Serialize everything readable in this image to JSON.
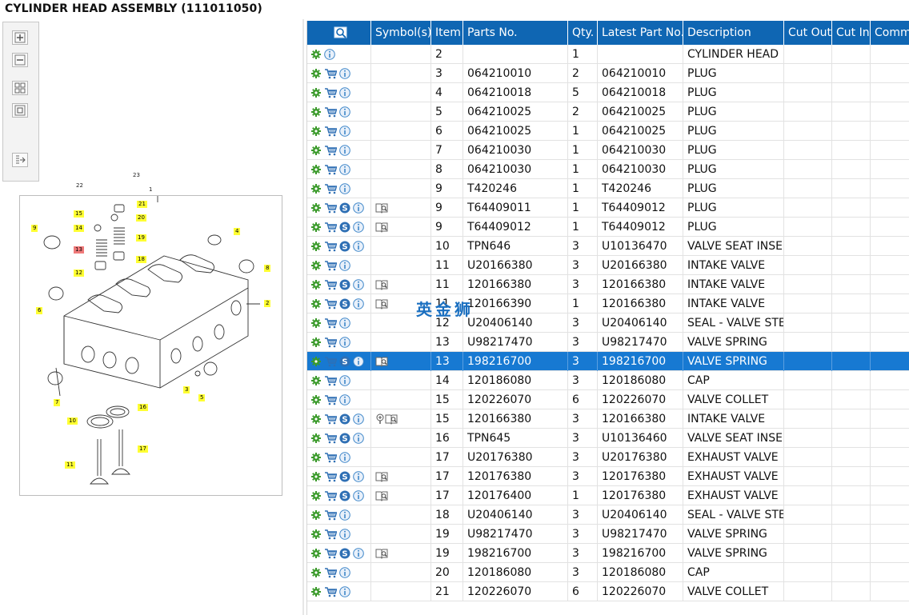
{
  "page": {
    "title": "CYLINDER HEAD ASSEMBLY (111011050)"
  },
  "toolbar": {
    "buttons": [
      {
        "name": "zoom-in-icon"
      },
      {
        "name": "zoom-out-icon"
      },
      {
        "name": "fit-grid-icon"
      },
      {
        "name": "actual-size-icon"
      },
      {
        "name": "export-icon"
      }
    ]
  },
  "diagram": {
    "callouts": [
      "1",
      "2",
      "3",
      "4",
      "5",
      "6",
      "7",
      "8",
      "9",
      "10",
      "11",
      "12",
      "13",
      "14",
      "15",
      "16",
      "17",
      "18",
      "19",
      "20",
      "21",
      "22",
      "23"
    ],
    "highlighted_callout": "13"
  },
  "watermark": "英金狮",
  "table": {
    "headers": [
      "",
      "Symbol(s)",
      "Item",
      "Parts No.",
      "Qty.",
      "Latest Part No.",
      "Description",
      "Cut Out",
      "Cut In",
      "Comment"
    ],
    "selected_index": 16,
    "rows": [
      {
        "cart": false,
        "s": false,
        "sym": "",
        "item": "2",
        "part": "",
        "qty": "1",
        "latest": "",
        "desc": "CYLINDER HEAD"
      },
      {
        "cart": true,
        "s": false,
        "sym": "",
        "item": "3",
        "part": "064210010",
        "qty": "2",
        "latest": "064210010",
        "desc": "PLUG"
      },
      {
        "cart": true,
        "s": false,
        "sym": "",
        "item": "4",
        "part": "064210018",
        "qty": "5",
        "latest": "064210018",
        "desc": "PLUG"
      },
      {
        "cart": true,
        "s": false,
        "sym": "",
        "item": "5",
        "part": "064210025",
        "qty": "2",
        "latest": "064210025",
        "desc": "PLUG"
      },
      {
        "cart": true,
        "s": false,
        "sym": "",
        "item": "6",
        "part": "064210025",
        "qty": "1",
        "latest": "064210025",
        "desc": "PLUG"
      },
      {
        "cart": true,
        "s": false,
        "sym": "",
        "item": "7",
        "part": "064210030",
        "qty": "1",
        "latest": "064210030",
        "desc": "PLUG"
      },
      {
        "cart": true,
        "s": false,
        "sym": "",
        "item": "8",
        "part": "064210030",
        "qty": "1",
        "latest": "064210030",
        "desc": "PLUG"
      },
      {
        "cart": true,
        "s": false,
        "sym": "",
        "item": "9",
        "part": "T420246",
        "qty": "1",
        "latest": "T420246",
        "desc": "PLUG"
      },
      {
        "cart": true,
        "s": true,
        "sym": "book",
        "item": "9",
        "part": "T64409011",
        "qty": "1",
        "latest": "T64409012",
        "desc": "PLUG"
      },
      {
        "cart": true,
        "s": true,
        "sym": "book",
        "item": "9",
        "part": "T64409012",
        "qty": "1",
        "latest": "T64409012",
        "desc": "PLUG"
      },
      {
        "cart": true,
        "s": true,
        "sym": "",
        "item": "10",
        "part": "TPN646",
        "qty": "3",
        "latest": "U10136470",
        "desc": "VALVE SEAT INSERT"
      },
      {
        "cart": true,
        "s": false,
        "sym": "",
        "item": "11",
        "part": "U20166380",
        "qty": "3",
        "latest": "U20166380",
        "desc": "INTAKE VALVE"
      },
      {
        "cart": true,
        "s": true,
        "sym": "book",
        "item": "11",
        "part": "120166380",
        "qty": "3",
        "latest": "120166380",
        "desc": "INTAKE VALVE"
      },
      {
        "cart": true,
        "s": true,
        "sym": "book",
        "item": "11",
        "part": "120166390",
        "qty": "1",
        "latest": "120166380",
        "desc": "INTAKE VALVE"
      },
      {
        "cart": true,
        "s": false,
        "sym": "",
        "item": "12",
        "part": "U20406140",
        "qty": "3",
        "latest": "U20406140",
        "desc": "SEAL - VALVE STEM"
      },
      {
        "cart": true,
        "s": false,
        "sym": "",
        "item": "13",
        "part": "U98217470",
        "qty": "3",
        "latest": "U98217470",
        "desc": "VALVE SPRING"
      },
      {
        "cart": true,
        "s": true,
        "sym": "book",
        "item": "13",
        "part": "198216700",
        "qty": "3",
        "latest": "198216700",
        "desc": "VALVE SPRING"
      },
      {
        "cart": true,
        "s": false,
        "sym": "",
        "item": "14",
        "part": "120186080",
        "qty": "3",
        "latest": "120186080",
        "desc": "CAP"
      },
      {
        "cart": true,
        "s": false,
        "sym": "",
        "item": "15",
        "part": "120226070",
        "qty": "6",
        "latest": "120226070",
        "desc": "VALVE COLLET"
      },
      {
        "cart": true,
        "s": true,
        "sym": "bookpin",
        "item": "15",
        "part": "120166380",
        "qty": "3",
        "latest": "120166380",
        "desc": "INTAKE VALVE"
      },
      {
        "cart": true,
        "s": true,
        "sym": "",
        "item": "16",
        "part": "TPN645",
        "qty": "3",
        "latest": "U10136460",
        "desc": "VALVE SEAT INSERT"
      },
      {
        "cart": true,
        "s": false,
        "sym": "",
        "item": "17",
        "part": "U20176380",
        "qty": "3",
        "latest": "U20176380",
        "desc": "EXHAUST VALVE"
      },
      {
        "cart": true,
        "s": true,
        "sym": "book",
        "item": "17",
        "part": "120176380",
        "qty": "3",
        "latest": "120176380",
        "desc": "EXHAUST VALVE"
      },
      {
        "cart": true,
        "s": true,
        "sym": "book",
        "item": "17",
        "part": "120176400",
        "qty": "1",
        "latest": "120176380",
        "desc": "EXHAUST VALVE"
      },
      {
        "cart": true,
        "s": false,
        "sym": "",
        "item": "18",
        "part": "U20406140",
        "qty": "3",
        "latest": "U20406140",
        "desc": "SEAL - VALVE STEM"
      },
      {
        "cart": true,
        "s": false,
        "sym": "",
        "item": "19",
        "part": "U98217470",
        "qty": "3",
        "latest": "U98217470",
        "desc": "VALVE SPRING"
      },
      {
        "cart": true,
        "s": true,
        "sym": "book",
        "item": "19",
        "part": "198216700",
        "qty": "3",
        "latest": "198216700",
        "desc": "VALVE SPRING"
      },
      {
        "cart": true,
        "s": false,
        "sym": "",
        "item": "20",
        "part": "120186080",
        "qty": "3",
        "latest": "120186080",
        "desc": "CAP"
      },
      {
        "cart": true,
        "s": false,
        "sym": "",
        "item": "21",
        "part": "120226070",
        "qty": "6",
        "latest": "120226070",
        "desc": "VALVE COLLET"
      }
    ]
  },
  "colors": {
    "header_bg": "#0f66b3",
    "selected_row": "#1779d2",
    "callout": "#ffff33",
    "callout_highlight": "#f07a7a",
    "gear": "#3a9a2a",
    "info": "#3f87c9"
  }
}
